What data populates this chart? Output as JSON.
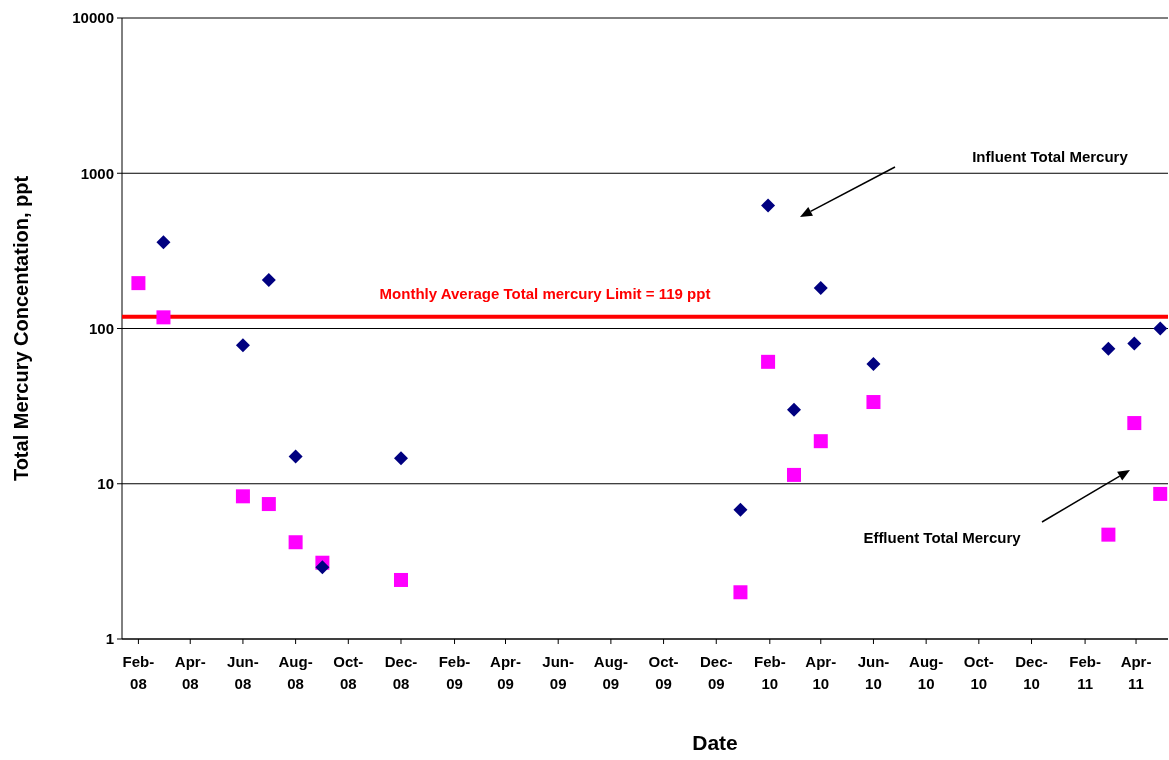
{
  "chart_data": {
    "type": "scatter",
    "xlabel": "Date",
    "ylabel": "Total Mercury Concentation, ppt",
    "log": "y",
    "grid": "y",
    "xlim": [
      "2008-01-13",
      "2011-05-08"
    ],
    "ylim": [
      1,
      10000
    ],
    "yticks": [
      1,
      10,
      100,
      1000,
      10000
    ],
    "xticks": [
      {
        "value": "2008-02-01",
        "label": "Feb-08"
      },
      {
        "value": "2008-04-01",
        "label": "Apr-08"
      },
      {
        "value": "2008-06-01",
        "label": "Jun-08"
      },
      {
        "value": "2008-08-01",
        "label": "Aug-08"
      },
      {
        "value": "2008-10-01",
        "label": "Oct-08"
      },
      {
        "value": "2008-12-01",
        "label": "Dec-08"
      },
      {
        "value": "2009-02-01",
        "label": "Feb-09"
      },
      {
        "value": "2009-04-01",
        "label": "Apr-09"
      },
      {
        "value": "2009-06-01",
        "label": "Jun-09"
      },
      {
        "value": "2009-08-01",
        "label": "Aug-09"
      },
      {
        "value": "2009-10-01",
        "label": "Oct-09"
      },
      {
        "value": "2009-12-01",
        "label": "Dec-09"
      },
      {
        "value": "2010-02-01",
        "label": "Feb-10"
      },
      {
        "value": "2010-04-01",
        "label": "Apr-10"
      },
      {
        "value": "2010-06-01",
        "label": "Jun-10"
      },
      {
        "value": "2010-08-01",
        "label": "Aug-10"
      },
      {
        "value": "2010-10-01",
        "label": "Oct-10"
      },
      {
        "value": "2010-12-01",
        "label": "Dec-10"
      },
      {
        "value": "2011-02-01",
        "label": "Feb-11"
      },
      {
        "value": "2011-04-01",
        "label": "Apr-11"
      }
    ],
    "series": [
      {
        "color": "#000080",
        "marker": "diamond",
        "x": [
          "2008-03-01",
          "2008-06-01",
          "2008-07-01",
          "2008-08-01",
          "2008-09-01",
          "2008-12-01",
          "2009-12-29",
          "2010-01-30",
          "2010-03-01",
          "2010-04-01",
          "2010-06-01",
          "2011-02-28",
          "2011-03-30",
          "2011-04-29"
        ],
        "values": [
          360,
          78,
          205,
          15,
          2.9,
          14.6,
          6.8,
          620,
          30,
          182,
          59,
          74,
          80,
          100
        ]
      },
      {
        "color": "#ff00ff",
        "marker": "square",
        "x": [
          "2008-02-01",
          "2008-03-01",
          "2008-06-01",
          "2008-07-01",
          "2008-08-01",
          "2008-09-01",
          "2008-12-01",
          "2009-12-29",
          "2010-01-30",
          "2010-03-01",
          "2010-04-01",
          "2010-06-01",
          "2011-02-28",
          "2011-03-30",
          "2011-04-29"
        ],
        "values": [
          196,
          118,
          8.3,
          7.4,
          4.2,
          3.1,
          2.4,
          2.0,
          61,
          11.4,
          18.8,
          33.6,
          4.7,
          24.6,
          8.6
        ]
      }
    ],
    "ref_lines": [
      {
        "axis": "y",
        "value": 119,
        "label": "Monthly Average Total mercury Limit = 119 ppt",
        "color": "#ff0000"
      }
    ],
    "annotations": [
      "Influent Total Mercury",
      "Effluent Total Mercury"
    ]
  }
}
